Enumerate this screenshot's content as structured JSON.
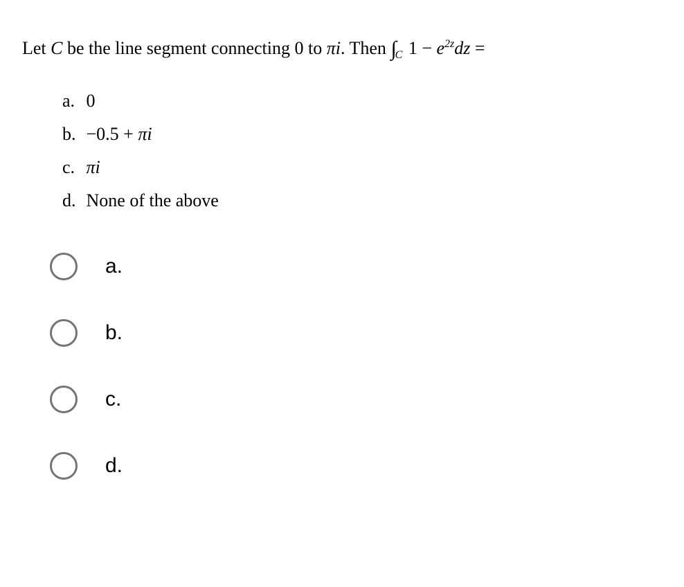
{
  "question": {
    "prefix": "Let ",
    "c_var": "C",
    "mid1": " be the line segment connecting 0 to ",
    "pi_i": "πi",
    "mid2": ". Then ",
    "int_sym": "∫",
    "int_sub": "C",
    "integrand_pre": " 1 − ",
    "e": "e",
    "exp": "2z",
    "dz": "dz",
    "eq": " ="
  },
  "answers": {
    "a": {
      "letter": "a.",
      "text": "0"
    },
    "b": {
      "letter": "b.",
      "pre": "−0.5 + ",
      "pii": "πi"
    },
    "c": {
      "letter": "c.",
      "pii": "πi"
    },
    "d": {
      "letter": "d.",
      "text": "None of the above"
    }
  },
  "radios": {
    "a": "a.",
    "b": "b.",
    "c": "c.",
    "d": "d."
  },
  "colors": {
    "text": "#000000",
    "radio_border": "#747474",
    "background": "#ffffff"
  },
  "fonts": {
    "question_family": "Times New Roman",
    "question_size_pt": 20,
    "radio_family": "Arial",
    "radio_size_pt": 22
  }
}
